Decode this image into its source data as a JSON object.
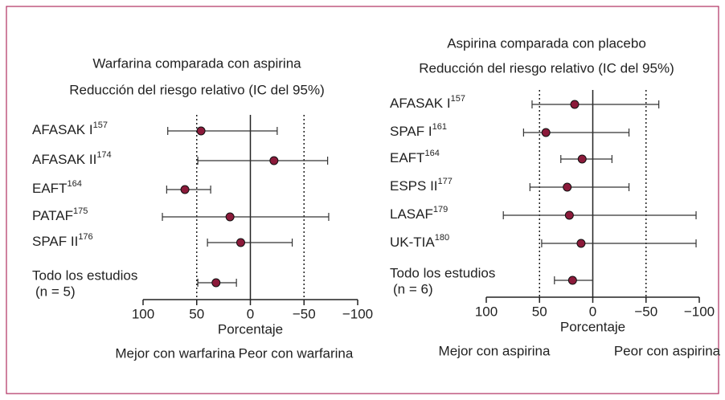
{
  "chart_data": [
    {
      "type": "forest",
      "title": "Warfarina comparada con aspirina",
      "subtitle": "Reducción del riesgo relativo (IC del 95%)",
      "x_label": "Porcentaje",
      "annotations": [
        "Mejor con warfarina",
        "Peor con warfarina"
      ],
      "categories": [
        {
          "label": "AFASAK I",
          "ref": "157"
        },
        {
          "label": "AFASAK II",
          "ref": "174"
        },
        {
          "label": "EAFT",
          "ref": "164"
        },
        {
          "label": "PATAF",
          "ref": "175"
        },
        {
          "label": "SPAF II",
          "ref": "176"
        },
        {
          "label": "Todo los estudios",
          "note": "(n = 5)"
        }
      ],
      "values": [
        46,
        -22,
        61,
        19,
        9,
        32
      ],
      "ci": [
        [
          77,
          -25
        ],
        [
          49,
          -72
        ],
        [
          78,
          37
        ],
        [
          82,
          -73
        ],
        [
          40,
          -39
        ],
        [
          49,
          13
        ]
      ],
      "xlim": [
        100,
        -100
      ],
      "xticks": [
        100,
        50,
        0,
        {
          "value": -50,
          "label": "−50"
        },
        {
          "value": -100,
          "label": "−100"
        }
      ],
      "reference_lines": [
        50,
        -50
      ],
      "color": "#8b1a3a"
    },
    {
      "type": "forest",
      "title": "Aspirina comparada con placebo",
      "subtitle": "Reducción del riesgo relativo (IC del 95%)",
      "x_label": "Porcentaje",
      "annotations": [
        "Mejor con aspirina",
        "Peor con aspirina"
      ],
      "categories": [
        {
          "label": "AFASAK I",
          "ref": "157"
        },
        {
          "label": "SPAF I",
          "ref": "161"
        },
        {
          "label": "EAFT",
          "ref": "164"
        },
        {
          "label": "ESPS II",
          "ref": "177"
        },
        {
          "label": "LASAF",
          "ref": "179"
        },
        {
          "label": "UK-TIA",
          "ref": "180"
        },
        {
          "label": "Todo los estudios",
          "note": "(n = 6)"
        }
      ],
      "values": [
        17,
        44,
        10,
        24,
        22,
        11,
        19
      ],
      "ci": [
        [
          57,
          -62
        ],
        [
          65,
          -34
        ],
        [
          30,
          -18
        ],
        [
          59,
          -34
        ],
        [
          84,
          -97
        ],
        [
          48,
          -97
        ],
        [
          36,
          0
        ]
      ],
      "xlim": [
        100,
        -100
      ],
      "xticks": [
        100,
        50,
        0,
        {
          "value": -50,
          "label": "−50"
        },
        {
          "value": -100,
          "label": "−100"
        }
      ],
      "reference_lines": [
        50,
        -50
      ],
      "color": "#8b1a3a"
    }
  ]
}
